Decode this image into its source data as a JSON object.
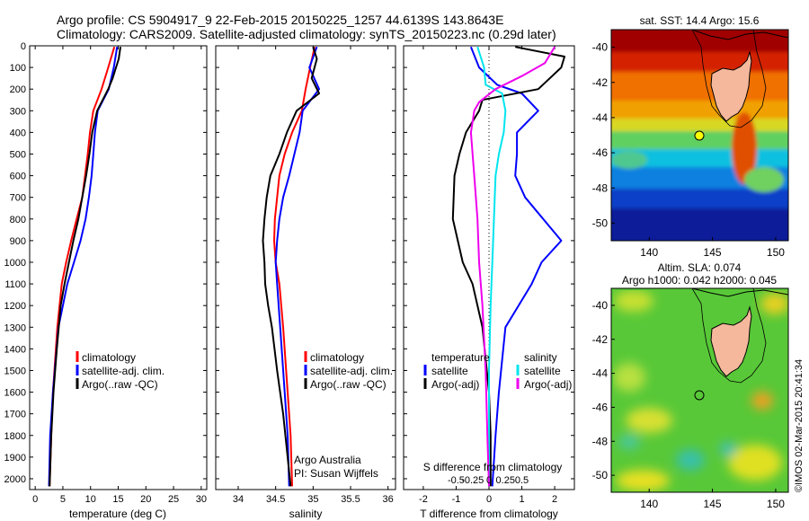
{
  "figure": {
    "title_line1": "Argo profile: CS 5904917_9 22-Feb-2015 20150225_1257 44.6139S 143.8643E",
    "title_line2": "Climatology: CARS2009. Satellite-adjusted climatology: synTS_20150223.nc (0.29d later)",
    "stamp": "©IMOS 02-Mar-2015 20:41:34",
    "credit_line1": "Argo Australia",
    "credit_line2": "PI: Susan Wijffels"
  },
  "colors": {
    "climatology": "#ff0000",
    "satellite": "#0000ff",
    "argo": "#000000",
    "satellite_salinity": "#00e5ee",
    "argo_salinity_adj": "#ee00ee",
    "land": "#f5b89c",
    "marker": "#ffff00"
  },
  "chart_data": [
    {
      "id": "temperature",
      "type": "line",
      "xlabel": "temperature (deg C)",
      "ylabel": "",
      "xlim": [
        -1,
        31
      ],
      "ylim": [
        0,
        2050
      ],
      "y_reversed": true,
      "xticks": [
        0,
        5,
        10,
        15,
        20,
        25,
        30
      ],
      "yticks": [
        0,
        100,
        200,
        300,
        400,
        500,
        600,
        700,
        800,
        900,
        1000,
        1100,
        1200,
        1300,
        1400,
        1500,
        1600,
        1700,
        1800,
        1900,
        2000
      ],
      "legend": [
        "climatology",
        "satellite-adj. clim.",
        "Argo(..raw -QC)"
      ],
      "series": [
        {
          "name": "climatology",
          "color_key": "climatology",
          "x": [
            14.3,
            13.2,
            12.0,
            10.5,
            9.9,
            9.5,
            9.0,
            8.5,
            7.5,
            6.5,
            5.6,
            4.8,
            4.0,
            3.2,
            2.9,
            2.6
          ],
          "y": [
            5,
            100,
            200,
            300,
            400,
            500,
            600,
            700,
            800,
            900,
            1000,
            1100,
            1300,
            1600,
            1800,
            2035
          ]
        },
        {
          "name": "satellite-adj. clim.",
          "color_key": "satellite",
          "x": [
            14.8,
            14.2,
            13.3,
            11.3,
            10.8,
            10.5,
            10.2,
            9.7,
            9.1,
            8.2,
            7.0,
            5.8,
            4.2,
            3.2,
            2.7,
            2.5
          ],
          "y": [
            5,
            100,
            200,
            300,
            400,
            500,
            600,
            700,
            800,
            900,
            1000,
            1100,
            1300,
            1600,
            1800,
            2035
          ]
        },
        {
          "name": "Argo(..raw -QC)",
          "color_key": "argo",
          "x": [
            15.4,
            15.1,
            14.0,
            13.2,
            11.2,
            10.3,
            9.8,
            9.2,
            8.5,
            7.8,
            6.9,
            6.1,
            5.3,
            4.6,
            3.9,
            3.3,
            2.9,
            2.6
          ],
          "y": [
            5,
            60,
            150,
            200,
            300,
            400,
            500,
            600,
            700,
            800,
            900,
            1000,
            1100,
            1200,
            1400,
            1600,
            1800,
            2035
          ]
        }
      ]
    },
    {
      "id": "salinity",
      "type": "line",
      "xlabel": "salinity",
      "ylabel": "",
      "xlim": [
        33.7,
        36.1
      ],
      "ylim": [
        0,
        2050
      ],
      "y_reversed": true,
      "xticks": [
        34,
        34.5,
        35,
        35.5,
        36
      ],
      "xticklabels": [
        "34",
        "34.5",
        "35",
        "35.5",
        "36"
      ],
      "legend": [
        "climatology",
        "satellite-adj. clim.",
        "Argo(..raw -QC)"
      ],
      "series": [
        {
          "name": "climatology",
          "color_key": "climatology",
          "x": [
            35.02,
            34.96,
            34.9,
            34.85,
            34.72,
            34.62,
            34.55,
            34.52,
            34.49,
            34.48,
            34.5,
            34.55,
            34.6,
            34.66,
            34.7,
            34.72
          ],
          "y": [
            5,
            100,
            200,
            300,
            400,
            500,
            600,
            700,
            800,
            900,
            1000,
            1100,
            1300,
            1600,
            1800,
            2035
          ]
        },
        {
          "name": "satellite-adj. clim.",
          "color_key": "satellite",
          "x": [
            35.05,
            34.95,
            35.08,
            34.86,
            34.82,
            34.75,
            34.68,
            34.6,
            34.55,
            34.52,
            34.5,
            34.52,
            34.56,
            34.62,
            34.66,
            34.68
          ],
          "y": [
            5,
            100,
            200,
            300,
            400,
            500,
            600,
            700,
            800,
            900,
            1000,
            1100,
            1300,
            1600,
            1800,
            2035
          ]
        },
        {
          "name": "Argo(..raw -QC)",
          "color_key": "argo",
          "x": [
            35.0,
            35.05,
            34.98,
            35.08,
            34.78,
            34.65,
            34.55,
            34.43,
            34.38,
            34.35,
            34.33,
            34.35,
            34.36,
            34.4,
            34.45,
            34.52,
            34.6,
            34.66,
            34.7
          ],
          "y": [
            5,
            60,
            150,
            220,
            300,
            400,
            500,
            600,
            700,
            800,
            900,
            1000,
            1100,
            1200,
            1300,
            1500,
            1700,
            1900,
            2035
          ]
        }
      ]
    },
    {
      "id": "difference",
      "type": "line",
      "xlabel": "T difference from climatology",
      "xlabel_top": "S difference from climatology",
      "xlim": [
        -2.6,
        2.6
      ],
      "ylim": [
        0,
        2050
      ],
      "y_reversed": true,
      "xticks": [
        -2,
        -1,
        0,
        1,
        2
      ],
      "xticklabels": [
        "-2",
        "-1",
        "0",
        "1",
        "2"
      ],
      "s_ticklabels": [
        "-0.5",
        "-0.25",
        "0",
        "0.25",
        "0.5"
      ],
      "legend_headers": [
        "temperature",
        "salinity"
      ],
      "legend_left": [
        "satellite",
        "Argo(-adj)"
      ],
      "legend_right": [
        "satellite",
        "Argo(-adj)"
      ],
      "series": [
        {
          "name": "temperature satellite",
          "color_key": "satellite",
          "x": [
            -0.55,
            -0.3,
            0.25,
            1.0,
            1.5,
            0.85,
            0.85,
            0.8,
            1.1,
            2.2,
            1.6,
            1.3,
            0.5,
            0.3,
            0.2,
            0.1
          ],
          "y": [
            5,
            100,
            180,
            220,
            300,
            400,
            500,
            600,
            700,
            900,
            1000,
            1100,
            1300,
            1600,
            1800,
            2035
          ]
        },
        {
          "name": "temperature Argo(-adj)",
          "color_key": "argo",
          "x": [
            0.8,
            2.3,
            2.2,
            1.5,
            -0.2,
            -0.3,
            -0.7,
            -0.9,
            -1.05,
            -1.1,
            -0.8,
            -0.5,
            -0.2,
            0.0,
            0.05,
            0.05
          ],
          "y": [
            5,
            50,
            100,
            200,
            250,
            300,
            400,
            500,
            600,
            800,
            1000,
            1100,
            1300,
            1600,
            1800,
            2035
          ]
        },
        {
          "name": "salinity satellite",
          "color_key": "satellite_salinity",
          "x": [
            -0.35,
            -0.15,
            -0.1,
            0.4,
            0.5,
            0.45,
            0.3,
            0.2,
            0.15,
            0.1,
            0.05,
            0.0,
            0.0,
            0.0
          ],
          "y": [
            5,
            100,
            180,
            220,
            300,
            400,
            500,
            600,
            800,
            1000,
            1200,
            1500,
            1800,
            2035
          ]
        },
        {
          "name": "salinity Argo(-adj)",
          "color_key": "argo_salinity_adj",
          "x": [
            2.0,
            1.7,
            1.0,
            0.2,
            -0.3,
            -0.45,
            -0.55,
            -0.45,
            -0.35,
            -0.3,
            -0.2,
            -0.1,
            -0.05,
            0.0
          ],
          "y": [
            5,
            80,
            140,
            200,
            260,
            300,
            400,
            600,
            800,
            1000,
            1200,
            1500,
            1800,
            2035
          ]
        }
      ]
    },
    {
      "id": "sst_map",
      "type": "heatmap",
      "title": "sat. SST: 14.4  Argo: 15.6",
      "xlim": [
        137,
        151
      ],
      "ylim": [
        -51,
        -39
      ],
      "xticks": [
        140,
        145,
        150
      ],
      "yticks": [
        -40,
        -42,
        -44,
        -46,
        -48,
        -50
      ],
      "argo_position": [
        143.86,
        -44.61
      ],
      "colormap": "jet"
    },
    {
      "id": "sla_map",
      "type": "heatmap",
      "title_line1": "Altim. SLA: 0.074",
      "title_line2": "Argo h1000: 0.042  h2000: 0.045",
      "xlim": [
        137,
        151
      ],
      "ylim": [
        -51,
        -39
      ],
      "xticks": [
        140,
        145,
        150
      ],
      "yticks": [
        -40,
        -42,
        -44,
        -46,
        -48,
        -50
      ],
      "argo_position": [
        143.86,
        -44.61
      ],
      "colormap": "jet"
    }
  ]
}
